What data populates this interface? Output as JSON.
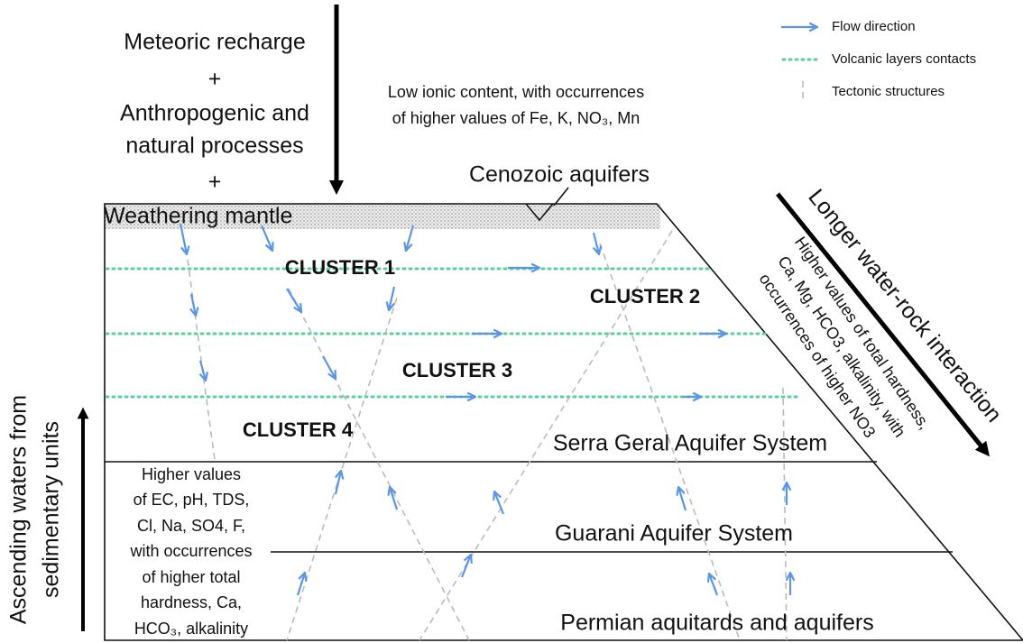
{
  "recharge": {
    "lines": [
      "Meteoric recharge",
      "+",
      "Anthropogenic and",
      "natural processes",
      "+"
    ]
  },
  "surface_note": {
    "lines": [
      "Low ionic content, with occurrences",
      "of higher values of Fe, K, NO₃, Mn"
    ]
  },
  "cenozoic": "Cenozoic aquifers",
  "weathering": "Weathering mantle",
  "clusters": [
    "CLUSTER 1",
    "CLUSTER 2",
    "CLUSTER 3",
    "CLUSTER 4"
  ],
  "units": [
    "Serra Geral Aquifer System",
    "Guarani Aquifer System",
    "Permian aquitards and aquifers"
  ],
  "deep_note": {
    "lines": [
      "Higher values",
      "of EC, pH, TDS,",
      "Cl, Na, SO4, F,",
      "with occurrences",
      "of higher total",
      "hardness, Ca,",
      "HCO₃, alkalinity"
    ]
  },
  "ascending": {
    "lines": [
      "Ascending waters from",
      "sedimentary units"
    ]
  },
  "longer": "Longer water-rock interaction",
  "side_note": {
    "lines": [
      "Higher values of total hardness,",
      "Ca, Mg, HCO3, alkalinity, with",
      "occurrences of higher NO3"
    ]
  },
  "legend": [
    "Flow direction",
    "Volcanic layers contacts",
    "Tectonic structures"
  ]
}
